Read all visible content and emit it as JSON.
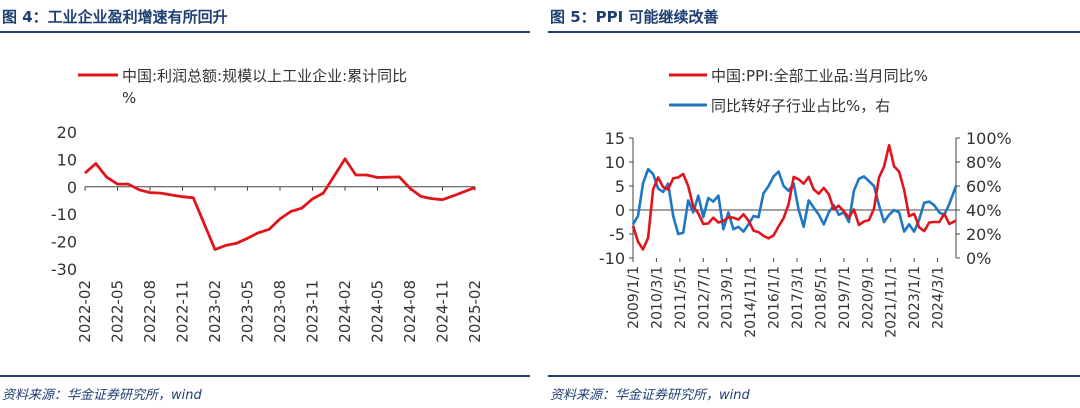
{
  "charts": {
    "left": {
      "figure_title": "图 4：工业企业盈利增速有所回升",
      "source": "资料来源：华金证券研究所，wind"
    },
    "right": {
      "figure_title": "图 5：PPI 可能继续改善",
      "source": "资料来源：华金证券研究所，wind"
    }
  },
  "colors": {
    "title": "#1f3f73",
    "red": "#e1141b",
    "blue": "#1f77c4"
  },
  "chart_data": [
    {
      "type": "line",
      "title": "图 4：工业企业盈利增速有所回升",
      "legend_lines": [
        "中国:利润总额:规模以上工业企业:累计同比",
        "%"
      ],
      "legend_placement": "top",
      "ylim": [
        -30,
        20
      ],
      "y_ticks": [
        20,
        10,
        0,
        -10,
        -20,
        -30
      ],
      "y_tick_labels": [
        "20",
        "10",
        "0",
        "-10",
        "-20",
        "-30"
      ],
      "x_range": [
        "2022-02",
        "2025-02"
      ],
      "x_tick_labels": [
        "2022-02",
        "2022-05",
        "2022-08",
        "2022-11",
        "2023-02",
        "2023-05",
        "2023-08",
        "2023-11",
        "2024-02",
        "2024-05",
        "2024-08",
        "2024-11",
        "2025-02"
      ],
      "grid": false,
      "series": [
        {
          "name": "中国:利润总额:规模以上工业企业:累计同比%",
          "color": "#e1141b",
          "x": [
            "2022-02",
            "2022-03",
            "2022-04",
            "2022-05",
            "2022-06",
            "2022-07",
            "2022-08",
            "2022-09",
            "2022-10",
            "2022-11",
            "2022-12",
            "2023-02",
            "2023-03",
            "2023-04",
            "2023-05",
            "2023-06",
            "2023-07",
            "2023-08",
            "2023-09",
            "2023-10",
            "2023-11",
            "2023-12",
            "2024-02",
            "2024-03",
            "2024-04",
            "2024-05",
            "2024-06",
            "2024-07",
            "2024-08",
            "2024-09",
            "2024-10",
            "2024-11",
            "2024-12",
            "2025-02"
          ],
          "values": [
            5.0,
            8.5,
            3.5,
            1.0,
            1.0,
            -1.1,
            -2.1,
            -2.3,
            -3.0,
            -3.6,
            -4.0,
            -22.9,
            -21.4,
            -20.6,
            -18.8,
            -16.8,
            -15.5,
            -11.7,
            -9.0,
            -7.8,
            -4.4,
            -2.3,
            10.2,
            4.3,
            4.3,
            3.4,
            3.5,
            3.6,
            -0.5,
            -3.5,
            -4.3,
            -4.7,
            -3.3,
            -0.3
          ]
        }
      ]
    },
    {
      "type": "line",
      "title": "图 5：PPI 可能继续改善",
      "legend_placement": "top",
      "ylim": [
        -10,
        15
      ],
      "y_ticks": [
        15,
        10,
        5,
        0,
        -5,
        -10
      ],
      "y_tick_labels": [
        "15",
        "10",
        "5",
        "0",
        "-5",
        "-10"
      ],
      "y2lim": [
        0,
        100
      ],
      "y2_ticks": [
        100,
        80,
        60,
        40,
        20,
        0
      ],
      "y2_tick_labels": [
        "100%",
        "80%",
        "60%",
        "40%",
        "20%",
        "0%"
      ],
      "x_range": [
        "2009-01",
        "2025-02"
      ],
      "x_tick_labels": [
        "2009/1/1",
        "2010/3/1",
        "2011/5/1",
        "2012/7/1",
        "2013/9/1",
        "2014/11/1",
        "2016/1/1",
        "2017/3/1",
        "2018/5/1",
        "2019/7/1",
        "2020/9/1",
        "2021/11/1",
        "2023/1/1",
        "2024/3/1"
      ],
      "grid": false,
      "series": [
        {
          "name": "中国:PPI:全部工业品:当月同比%",
          "axis": "left",
          "color": "#e1141b",
          "x": [
            "2009-01",
            "2009-04",
            "2009-07",
            "2009-10",
            "2010-01",
            "2010-04",
            "2010-07",
            "2010-10",
            "2011-01",
            "2011-04",
            "2011-07",
            "2011-10",
            "2012-01",
            "2012-04",
            "2012-07",
            "2012-10",
            "2013-01",
            "2013-04",
            "2013-07",
            "2013-10",
            "2014-01",
            "2014-04",
            "2014-07",
            "2014-10",
            "2015-01",
            "2015-04",
            "2015-07",
            "2015-10",
            "2016-01",
            "2016-04",
            "2016-07",
            "2016-10",
            "2017-01",
            "2017-04",
            "2017-07",
            "2017-10",
            "2018-01",
            "2018-04",
            "2018-07",
            "2018-10",
            "2019-01",
            "2019-04",
            "2019-07",
            "2019-10",
            "2020-01",
            "2020-04",
            "2020-07",
            "2020-10",
            "2021-01",
            "2021-04",
            "2021-07",
            "2021-10",
            "2022-01",
            "2022-04",
            "2022-07",
            "2022-10",
            "2023-01",
            "2023-04",
            "2023-07",
            "2023-10",
            "2024-01",
            "2024-04",
            "2024-07",
            "2024-10",
            "2025-02"
          ],
          "values": [
            -3.3,
            -6.6,
            -8.2,
            -5.8,
            4.3,
            6.8,
            4.8,
            4.3,
            6.6,
            6.8,
            7.5,
            5.0,
            0.7,
            -0.7,
            -2.9,
            -2.8,
            -1.6,
            -2.6,
            -2.3,
            -1.5,
            -1.6,
            -2.0,
            -0.9,
            -2.2,
            -4.3,
            -4.6,
            -5.4,
            -5.9,
            -5.3,
            -3.4,
            -1.7,
            1.2,
            6.9,
            6.4,
            5.5,
            6.9,
            4.3,
            3.4,
            4.6,
            3.3,
            0.1,
            0.9,
            -0.3,
            -1.6,
            0.1,
            -3.1,
            -2.4,
            -2.1,
            0.3,
            6.8,
            9.0,
            13.5,
            9.1,
            8.0,
            4.2,
            -1.3,
            -0.8,
            -3.6,
            -4.4,
            -2.6,
            -2.5,
            -2.5,
            -0.8,
            -2.9,
            -2.2
          ]
        },
        {
          "name": "同比转好子行业占比%，右",
          "axis": "right",
          "color": "#1f77c4",
          "x": [
            "2009-01",
            "2009-04",
            "2009-07",
            "2009-10",
            "2010-01",
            "2010-04",
            "2010-07",
            "2010-10",
            "2011-01",
            "2011-04",
            "2011-07",
            "2011-10",
            "2012-01",
            "2012-04",
            "2012-07",
            "2012-10",
            "2013-01",
            "2013-04",
            "2013-07",
            "2013-10",
            "2014-01",
            "2014-04",
            "2014-07",
            "2014-10",
            "2015-01",
            "2015-04",
            "2015-07",
            "2015-10",
            "2016-01",
            "2016-04",
            "2016-07",
            "2016-10",
            "2017-01",
            "2017-04",
            "2017-07",
            "2017-10",
            "2018-01",
            "2018-04",
            "2018-07",
            "2018-10",
            "2019-01",
            "2019-04",
            "2019-07",
            "2019-10",
            "2020-01",
            "2020-04",
            "2020-07",
            "2020-10",
            "2021-01",
            "2021-04",
            "2021-07",
            "2021-10",
            "2022-01",
            "2022-04",
            "2022-07",
            "2022-10",
            "2023-01",
            "2023-04",
            "2023-07",
            "2023-10",
            "2024-01",
            "2024-04",
            "2024-07",
            "2024-10",
            "2025-02"
          ],
          "values": [
            28,
            35,
            62,
            74,
            70,
            58,
            55,
            62,
            35,
            20,
            21,
            48,
            38,
            52,
            34,
            50,
            47,
            52,
            24,
            38,
            24,
            26,
            22,
            28,
            35,
            34,
            54,
            60,
            68,
            72,
            60,
            56,
            62,
            40,
            26,
            48,
            42,
            36,
            28,
            38,
            44,
            36,
            38,
            30,
            56,
            66,
            68,
            64,
            60,
            44,
            30,
            36,
            40,
            38,
            22,
            28,
            22,
            32,
            46,
            47,
            44,
            38,
            36,
            45,
            60
          ]
        }
      ]
    }
  ]
}
